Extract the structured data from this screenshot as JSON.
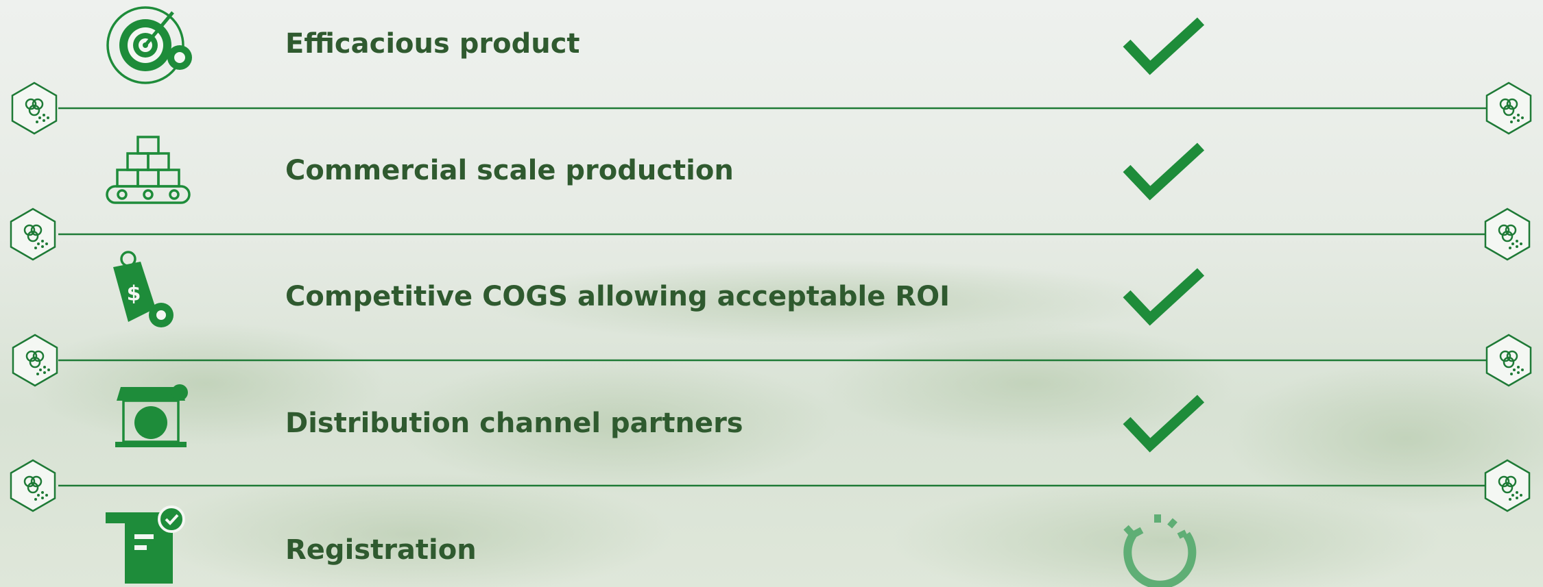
{
  "rows": [
    {
      "label": "Efficacious product"
    },
    {
      "label": "Commercial scale production"
    },
    {
      "label": "Competitive COGS allowing acceptable ROI"
    },
    {
      "label": "Distribution channel partners"
    },
    {
      "label": "Registration"
    }
  ]
}
